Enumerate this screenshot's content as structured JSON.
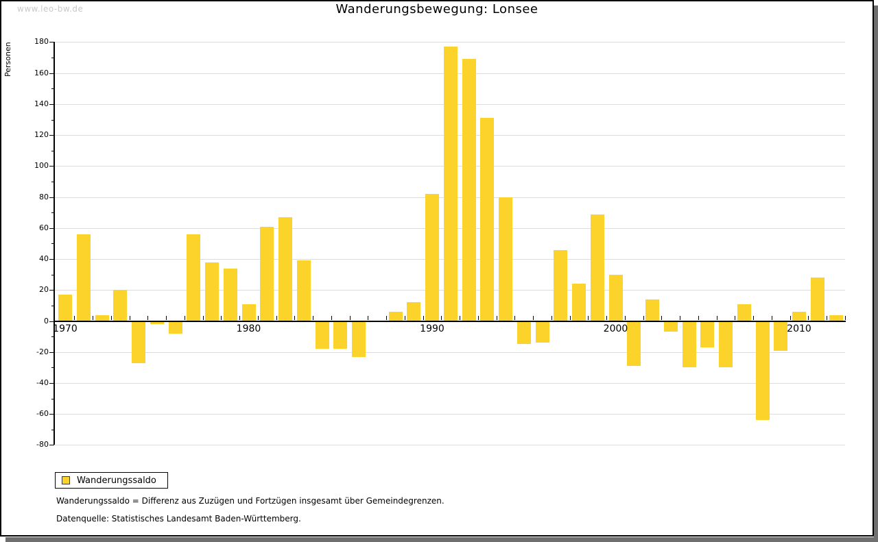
{
  "watermark": "www.leo-bw.de",
  "title": "Wanderungsbewegung: Lonsee",
  "y_axis_title": "Personen",
  "legend": {
    "label": "Wanderungssaldo"
  },
  "notes": [
    "Wanderungssaldo = Differenz aus Zuzügen und Fortzügen insgesamt über Gemeindegrenzen.",
    "Datenquelle: Statistisches Landesamt Baden-Württemberg."
  ],
  "colors": {
    "bar": "#FCD32B",
    "gridline": "#DCDCDC",
    "axis": "#000000",
    "watermark": "#C9C9C9",
    "frame_shadow": "#6F6F6F",
    "text": "#000000"
  },
  "chart_data": {
    "type": "bar",
    "title": "Wanderungsbewegung: Lonsee",
    "xlabel": "",
    "ylabel": "Personen",
    "series_name": "Wanderungssaldo",
    "years": [
      1970,
      1971,
      1972,
      1973,
      1974,
      1975,
      1976,
      1977,
      1978,
      1979,
      1980,
      1981,
      1982,
      1983,
      1984,
      1985,
      1986,
      1987,
      1988,
      1989,
      1990,
      1991,
      1992,
      1993,
      1994,
      1995,
      1996,
      1997,
      1998,
      1999,
      2000,
      2001,
      2002,
      2003,
      2004,
      2005,
      2006,
      2007,
      2008,
      2009,
      2010,
      2011,
      2012
    ],
    "values": [
      17,
      56,
      4,
      20,
      -27,
      -2,
      -8,
      56,
      38,
      34,
      11,
      61,
      67,
      39,
      -18,
      -18,
      -23,
      0,
      6,
      12,
      82,
      177,
      169,
      131,
      80,
      -15,
      -14,
      46,
      24,
      69,
      30,
      -29,
      14,
      -7,
      -30,
      -17,
      -30,
      11,
      -64,
      -19,
      6,
      28,
      4
    ],
    "ylim": [
      -80,
      180
    ],
    "ytick_step": 20,
    "y_minor_step": 10,
    "xtick_labels": [
      1970,
      1980,
      1990,
      2000,
      2010
    ],
    "grid": "horizontal",
    "legend_position": "bottom-left"
  }
}
